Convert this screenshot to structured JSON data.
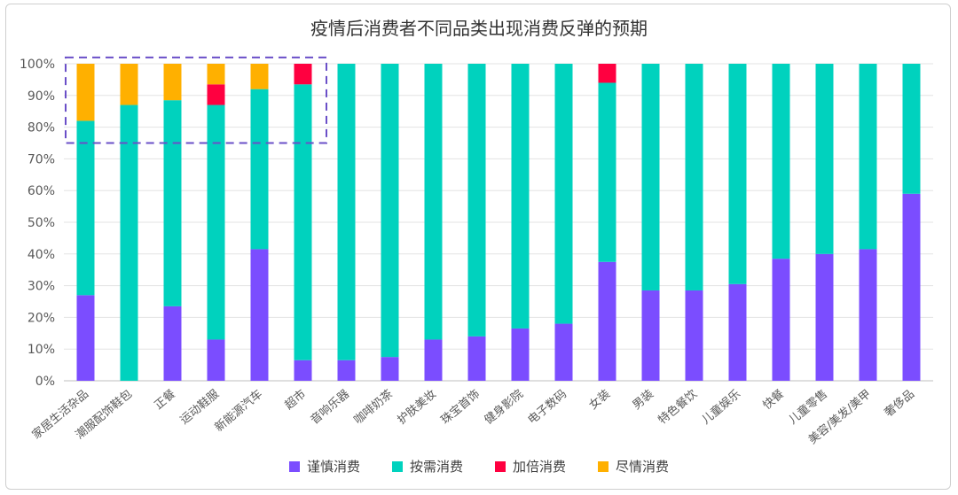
{
  "chart_data": {
    "type": "bar",
    "stacked": true,
    "title": "疫情后消费者不同品类出现消费反弹的预期",
    "ylim": [
      0,
      100
    ],
    "y_ticks": [
      "0%",
      "10%",
      "20%",
      "30%",
      "40%",
      "50%",
      "60%",
      "70%",
      "80%",
      "90%",
      "100%"
    ],
    "categories": [
      "家居生活杂品",
      "潮服配饰鞋包",
      "正餐",
      "运动鞋服",
      "新能源汽车",
      "超市",
      "音响乐器",
      "咖啡奶茶",
      "护肤美妆",
      "珠宝首饰",
      "健身影院",
      "电子数码",
      "女装",
      "男装",
      "特色餐饮",
      "儿童娱乐",
      "快餐",
      "儿童零售",
      "美容/美发/美甲",
      "奢侈品"
    ],
    "series": [
      {
        "name": "谨慎消费",
        "color": "#7B4DFF",
        "values": [
          27,
          0,
          23.5,
          13,
          41.5,
          6.5,
          6.5,
          7.5,
          13,
          14,
          16.5,
          18,
          37.5,
          28.5,
          28.5,
          30.5,
          38.5,
          40,
          41.5,
          59
        ]
      },
      {
        "name": "按需消费",
        "color": "#00D2BE",
        "values": [
          55,
          87,
          65,
          74,
          50.5,
          87,
          93.5,
          92.5,
          87,
          86,
          83.5,
          82,
          56.5,
          71.5,
          71.5,
          69.5,
          61.5,
          60,
          58.5,
          41
        ]
      },
      {
        "name": "加倍消费",
        "color": "#FF0040",
        "values": [
          0,
          0,
          0,
          6.5,
          0,
          6.5,
          0,
          0,
          0,
          0,
          0,
          0,
          6,
          0,
          0,
          0,
          0,
          0,
          0,
          0
        ]
      },
      {
        "name": "尽情消费",
        "color": "#FFB000",
        "values": [
          18,
          13,
          11.5,
          6.5,
          8,
          0,
          0,
          0,
          0,
          0,
          0,
          0,
          0,
          0,
          0,
          0,
          0,
          0,
          0,
          0
        ]
      }
    ],
    "highlight_box": {
      "categories": [
        "家居生活杂品",
        "超市"
      ],
      "y_range": [
        75,
        102
      ],
      "style": "dashed",
      "color": "#6A4FC8"
    },
    "grid": true,
    "legend_position": "bottom"
  }
}
